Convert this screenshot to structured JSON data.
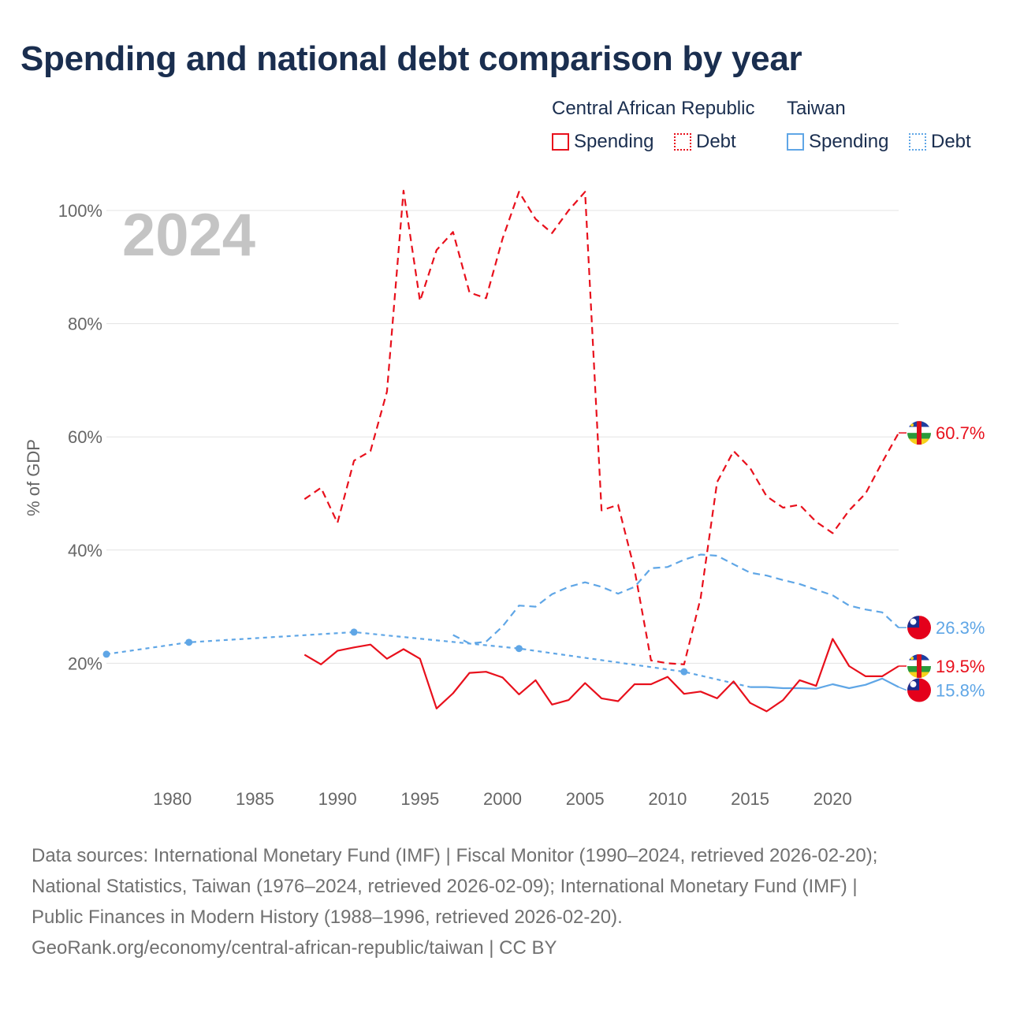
{
  "title": "Spending and national debt comparison by year",
  "legend": {
    "groups": [
      {
        "name": "Central African Republic",
        "items": [
          {
            "label": "Spending",
            "style": "solid",
            "color": "#e8101c"
          },
          {
            "label": "Debt",
            "style": "dotted",
            "color": "#e8101c"
          }
        ]
      },
      {
        "name": "Taiwan",
        "items": [
          {
            "label": "Spending",
            "style": "solid",
            "color": "#5fa6e6"
          },
          {
            "label": "Debt",
            "style": "dotted",
            "color": "#5fa6e6"
          }
        ]
      }
    ]
  },
  "chart_data": {
    "type": "line",
    "year_label": "2024",
    "ylabel": "% of GDP",
    "ylim": [
      0,
      105
    ],
    "xlim": [
      1976,
      2024
    ],
    "y_ticks": [
      {
        "value": 20,
        "label": "20%"
      },
      {
        "value": 40,
        "label": "40%"
      },
      {
        "value": 60,
        "label": "60%"
      },
      {
        "value": 80,
        "label": "80%"
      },
      {
        "value": 100,
        "label": "100%"
      }
    ],
    "x_ticks": [
      "1980",
      "1985",
      "1990",
      "1995",
      "2000",
      "2005",
      "2010",
      "2015",
      "2020"
    ],
    "series": [
      {
        "name": "Central African Republic Debt",
        "color": "#e8101c",
        "dash": "dashed",
        "end_label": "60.7%",
        "x": [
          1988,
          1989,
          1990,
          1991,
          1992,
          1993,
          1994,
          1995,
          1996,
          1997,
          1998,
          1999,
          2000,
          2001,
          2002,
          2003,
          2004,
          2005,
          2006,
          2007,
          2008,
          2009,
          2010,
          2011,
          2012,
          2013,
          2014,
          2015,
          2016,
          2017,
          2018,
          2019,
          2020,
          2021,
          2022,
          2023,
          2024
        ],
        "y": [
          49,
          51,
          44.8,
          55.8,
          57.5,
          68,
          103.5,
          84,
          93,
          96.2,
          85.5,
          84.5,
          95,
          103.3,
          98.5,
          96,
          100,
          103.3,
          47,
          48,
          36.5,
          20.5,
          20,
          19.8,
          31.5,
          52,
          57.5,
          54.5,
          49.5,
          47.5,
          48,
          45,
          43,
          47,
          50,
          55.5,
          60.7
        ],
        "flag": "car"
      },
      {
        "name": "Taiwan Debt",
        "color": "#5fa6e6",
        "dash": "dashed",
        "end_label": "26.3%",
        "x": [
          1997,
          1998,
          1999,
          2000,
          2001,
          2002,
          2003,
          2004,
          2005,
          2006,
          2007,
          2008,
          2009,
          2010,
          2011,
          2012,
          2013,
          2014,
          2015,
          2016,
          2017,
          2018,
          2019,
          2020,
          2021,
          2022,
          2023,
          2024
        ],
        "y": [
          25,
          23.5,
          23.8,
          26.5,
          30.2,
          30,
          32.2,
          33.5,
          34.3,
          33.5,
          32.3,
          33.5,
          36.8,
          37,
          38.3,
          39.2,
          39,
          37.5,
          36,
          35.5,
          34.7,
          34,
          33,
          32,
          30.2,
          29.5,
          29,
          26.3
        ],
        "flag": "taiwan"
      },
      {
        "name": "Taiwan Debt (historical)",
        "color": "#5fa6e6",
        "dash": "dotted",
        "end_label": "",
        "x": [
          1976,
          1981,
          1991,
          2001,
          2011,
          2015
        ],
        "y": [
          21.6,
          23.7,
          25.5,
          22.6,
          18.5,
          15.8
        ],
        "markers": [
          1976,
          1981,
          1991,
          2001,
          2011
        ],
        "flag": ""
      },
      {
        "name": "Taiwan Spending",
        "color": "#5fa6e6",
        "dash": "solid",
        "end_label": "15.8%",
        "x": [
          2015,
          2016,
          2017,
          2018,
          2019,
          2020,
          2021,
          2022,
          2023,
          2024
        ],
        "y": [
          15.8,
          15.8,
          15.6,
          15.6,
          15.5,
          16.3,
          15.6,
          16.2,
          17.3,
          15.8
        ],
        "flag": "taiwan"
      },
      {
        "name": "Central African Republic Spending",
        "color": "#e8101c",
        "dash": "solid",
        "end_label": "19.5%",
        "x": [
          1988,
          1989,
          1990,
          1991,
          1992,
          1993,
          1994,
          1995,
          1996,
          1997,
          1998,
          1999,
          2000,
          2001,
          2002,
          2003,
          2004,
          2005,
          2006,
          2007,
          2008,
          2009,
          2010,
          2011,
          2012,
          2013,
          2014,
          2015,
          2016,
          2017,
          2018,
          2019,
          2020,
          2021,
          2022,
          2023,
          2024
        ],
        "y": [
          21.5,
          19.8,
          22.2,
          22.8,
          23.3,
          20.8,
          22.5,
          20.8,
          12,
          14.7,
          18.3,
          18.5,
          17.5,
          14.5,
          17,
          12.7,
          13.5,
          16.5,
          13.8,
          13.3,
          16.3,
          16.3,
          17.6,
          14.6,
          15,
          13.8,
          16.8,
          13,
          11.5,
          13.5,
          17,
          16,
          24.3,
          19.5,
          17.7,
          17.7,
          19.5
        ],
        "flag": "car"
      }
    ]
  },
  "sources": [
    "Data sources: International Monetary Fund (IMF) | Fiscal Monitor (1990–2024, retrieved 2026-02-20);",
    "National Statistics, Taiwan (1976–2024, retrieved 2026-02-09); International Monetary Fund (IMF) |",
    "Public Finances in Modern History (1988–1996, retrieved 2026-02-20).",
    "GeoRank.org/economy/central-african-republic/taiwan | CC BY"
  ]
}
